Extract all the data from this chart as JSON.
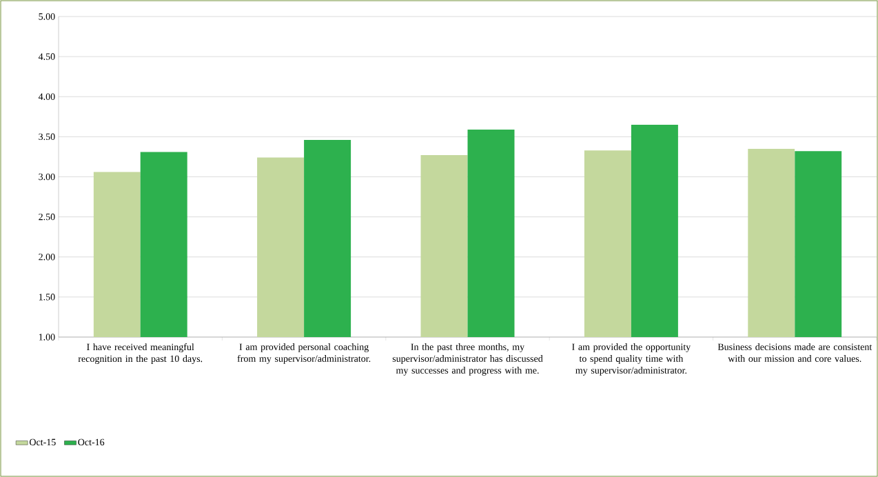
{
  "chart_data": {
    "type": "bar",
    "categories": [
      "I have received meaningful recognition in the past 10 days.",
      "I am provided personal coaching from my supervisor/administrator.",
      "In the past three months, my supervisor/administrator has discussed my successes and progress with me.",
      "I am provided the opportunity to spend quality time with my supervisor/administrator.",
      "Business decisions made are consistent with our mission and core values."
    ],
    "series": [
      {
        "name": "Oct-15",
        "color": "#c4d89d",
        "values": [
          3.06,
          3.24,
          3.27,
          3.33,
          3.35
        ]
      },
      {
        "name": "Oct-16",
        "color": "#2db14e",
        "values": [
          3.31,
          3.46,
          3.59,
          3.65,
          3.32
        ]
      }
    ],
    "ylim": [
      1,
      5
    ],
    "yticks": [
      {
        "value": 1,
        "label": "1.00"
      },
      {
        "value": 1.5,
        "label": "1.50"
      },
      {
        "value": 2,
        "label": "2.00"
      },
      {
        "value": 2.5,
        "label": "2.50"
      },
      {
        "value": 3,
        "label": "3.00"
      },
      {
        "value": 3.5,
        "label": "3.50"
      },
      {
        "value": 4,
        "label": "4.00"
      },
      {
        "value": 4.5,
        "label": "4.50"
      },
      {
        "value": 5,
        "label": "5.00"
      }
    ],
    "grid": "y",
    "legend": "bottom left"
  }
}
